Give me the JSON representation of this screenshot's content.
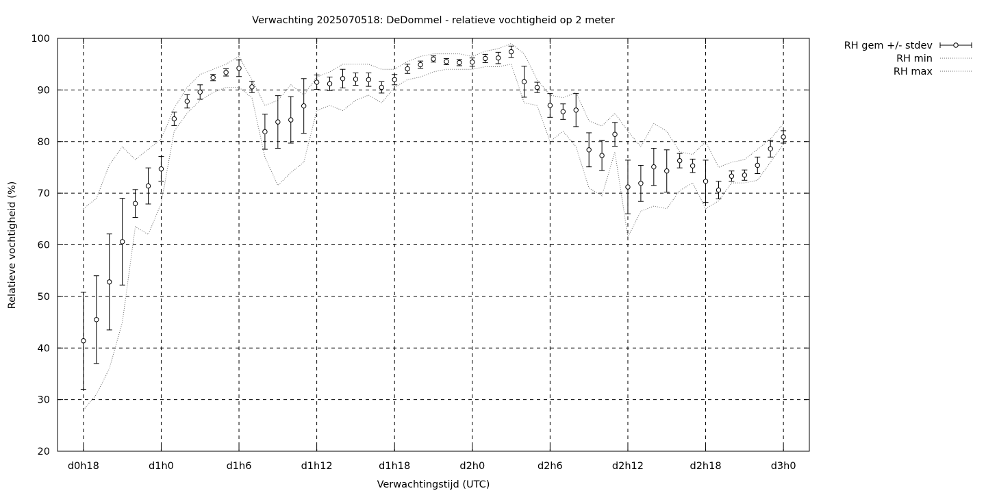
{
  "chart_data": {
    "type": "line",
    "title": "Verwachting 2025070518: DeDommel - relatieve vochtigheid op 2 meter",
    "xlabel": "Verwachtingstijd (UTC)",
    "ylabel": "Relatieve vochtigheid (%)",
    "ylim": [
      20,
      100
    ],
    "xlim": [
      16,
      74
    ],
    "yticks": [
      20,
      30,
      40,
      50,
      60,
      70,
      80,
      90,
      100
    ],
    "xticks": [
      {
        "x": 18,
        "label": "d0h18"
      },
      {
        "x": 24,
        "label": "d1h0"
      },
      {
        "x": 30,
        "label": "d1h6"
      },
      {
        "x": 36,
        "label": "d1h12"
      },
      {
        "x": 42,
        "label": "d1h18"
      },
      {
        "x": 48,
        "label": "d2h0"
      },
      {
        "x": 54,
        "label": "d2h6"
      },
      {
        "x": 60,
        "label": "d2h12"
      },
      {
        "x": 66,
        "label": "d2h18"
      },
      {
        "x": 72,
        "label": "d3h0"
      }
    ],
    "grid": true,
    "legend_position": "outside-top-right",
    "x": [
      18,
      19,
      20,
      21,
      22,
      23,
      24,
      25,
      26,
      27,
      28,
      29,
      30,
      31,
      32,
      33,
      34,
      35,
      36,
      37,
      38,
      39,
      40,
      41,
      42,
      43,
      44,
      45,
      46,
      47,
      48,
      49,
      50,
      51,
      52,
      53,
      54,
      55,
      56,
      57,
      58,
      59,
      60,
      61,
      62,
      63,
      64,
      65,
      66,
      67,
      68,
      69,
      70,
      71,
      72
    ],
    "series": [
      {
        "name": "RH gem +/- stdev",
        "style": "points-errorbars",
        "values": [
          41.4,
          45.5,
          52.8,
          60.6,
          68.0,
          71.4,
          74.7,
          84.4,
          87.8,
          89.6,
          92.4,
          93.4,
          94.2,
          90.6,
          81.9,
          83.8,
          84.2,
          86.9,
          91.5,
          91.2,
          92.2,
          92.1,
          92.0,
          90.5,
          92.0,
          94.1,
          94.9,
          96.0,
          95.5,
          95.3,
          95.4,
          96.1,
          96.2,
          97.4,
          91.6,
          90.5,
          87.0,
          85.8,
          86.1,
          78.4,
          77.3,
          81.4,
          71.2,
          71.9,
          75.1,
          74.3,
          76.3,
          75.3,
          72.3,
          70.6,
          73.3,
          73.5,
          75.4,
          78.6,
          80.9
        ],
        "stdev": [
          9.4,
          8.5,
          9.3,
          8.4,
          2.7,
          3.5,
          2.4,
          1.3,
          1.3,
          1.4,
          0.6,
          0.7,
          1.6,
          1.1,
          3.4,
          5.1,
          4.5,
          5.3,
          1.4,
          1.3,
          1.8,
          1.2,
          1.3,
          1.1,
          1.0,
          0.9,
          0.7,
          0.6,
          0.6,
          0.6,
          0.8,
          0.8,
          1.1,
          1.1,
          3.0,
          1.0,
          2.3,
          1.5,
          3.2,
          3.3,
          2.9,
          2.3,
          5.2,
          3.5,
          3.6,
          4.1,
          1.4,
          1.3,
          4.1,
          1.7,
          1.0,
          1.0,
          1.6,
          1.6,
          1.2
        ]
      },
      {
        "name": "RH min",
        "style": "dotted",
        "values": [
          28.0,
          31.0,
          36.0,
          45.0,
          63.5,
          62.0,
          68.0,
          82.0,
          85.5,
          88.0,
          89.5,
          90.5,
          90.5,
          88.5,
          77.0,
          71.5,
          74.0,
          76.0,
          86.0,
          87.0,
          86.0,
          88.0,
          89.0,
          87.5,
          90.5,
          92.0,
          92.5,
          93.5,
          94.0,
          94.0,
          94.0,
          94.5,
          94.5,
          95.0,
          87.5,
          87.0,
          80.0,
          82.0,
          79.0,
          71.0,
          69.5,
          78.0,
          61.5,
          66.5,
          67.5,
          67.0,
          70.5,
          72.0,
          67.0,
          68.5,
          72.0,
          72.0,
          72.5,
          76.0,
          79.5
        ]
      },
      {
        "name": "RH max",
        "style": "dotted",
        "values": [
          67.0,
          69.0,
          75.5,
          79.0,
          76.5,
          78.5,
          80.5,
          86.5,
          90.5,
          93.0,
          94.0,
          95.0,
          96.5,
          92.0,
          87.0,
          88.0,
          91.0,
          89.0,
          92.5,
          93.5,
          95.0,
          95.0,
          95.0,
          94.0,
          94.0,
          95.5,
          96.5,
          97.0,
          97.0,
          97.0,
          96.5,
          97.5,
          98.0,
          99.0,
          97.0,
          92.0,
          89.0,
          88.5,
          89.5,
          84.0,
          83.0,
          85.5,
          82.0,
          79.0,
          83.5,
          82.0,
          78.0,
          77.5,
          80.0,
          75.0,
          76.0,
          76.5,
          78.5,
          80.5,
          83.5
        ]
      }
    ]
  }
}
